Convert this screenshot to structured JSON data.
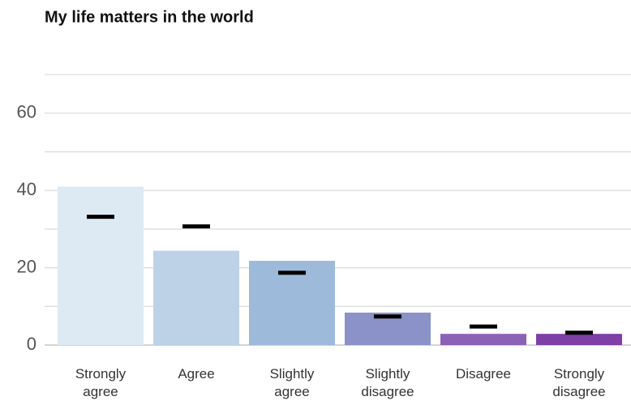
{
  "chart_data": {
    "type": "bar",
    "title": "My life matters in the world",
    "categories": [
      "Strongly agree",
      "Agree",
      "Slightly agree",
      "Slightly disagree",
      "Disagree",
      "Strongly disagree"
    ],
    "values": [
      41,
      24.4,
      21.8,
      8.4,
      2.9,
      2.9
    ],
    "colors": [
      "#deeaf3",
      "#bdd1e7",
      "#9ebada",
      "#8a92c7",
      "#8c62b7",
      "#7e3fa6"
    ],
    "reference_values": [
      33.2,
      30.7,
      18.7,
      7.4,
      4.8,
      3.2
    ],
    "reference_color": "#000000",
    "ylim": [
      0,
      70
    ],
    "yticks": [
      0,
      20,
      40,
      60
    ],
    "minor_yticks": [
      10,
      30,
      50,
      70
    ],
    "grid": true
  }
}
